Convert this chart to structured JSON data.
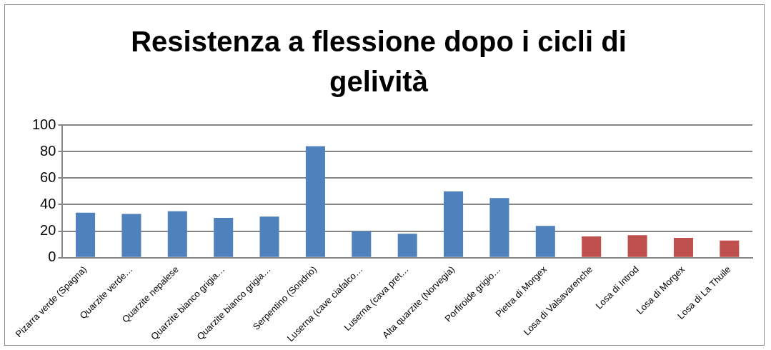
{
  "chart_data": {
    "type": "bar",
    "title": "Resistenza a flessione dopo i cicli di gelività",
    "categories": [
      "Pizarra verde (Spagna)",
      "Quarzite verde…",
      "Quarzite nepalese",
      "Quarzite bianco grigia…",
      "Quarzite bianco grigia…",
      "Serpentino (Sondrio)",
      "Luserna (cave ciafalco…",
      "Luserna (cava pret…",
      "Alta quarzite (Norvegia)",
      "Porfiroide grigio…",
      "Pietra di Morgex",
      "Losa di Valsavarenche",
      "Losa di Introd",
      "Losa di Morgex",
      "Losa di La Thuile"
    ],
    "values": [
      34,
      33,
      35,
      30,
      31,
      84,
      20,
      18,
      50,
      45,
      24,
      16,
      17,
      15,
      13
    ],
    "colors": [
      "#4f81bd",
      "#4f81bd",
      "#4f81bd",
      "#4f81bd",
      "#4f81bd",
      "#4f81bd",
      "#4f81bd",
      "#4f81bd",
      "#4f81bd",
      "#4f81bd",
      "#4f81bd",
      "#c0504d",
      "#c0504d",
      "#c0504d",
      "#c0504d"
    ],
    "ylim": [
      0,
      100
    ],
    "yticks": [
      0,
      20,
      40,
      60,
      80,
      100
    ],
    "grid": "y",
    "legend": false
  }
}
